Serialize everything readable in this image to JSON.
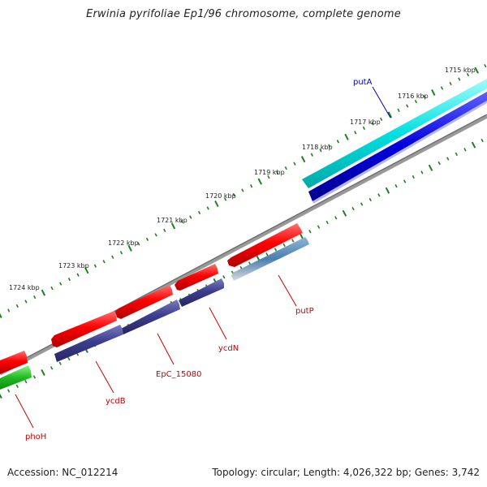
{
  "title": "Erwinia pyrifoliae Ep1/96 chromosome, complete genome",
  "footer": {
    "accession": "Accession: NC_012214",
    "summary": "Topology: circular; Length: 4,026,322 bp; Genes: 3,742"
  },
  "tick_labels": [
    "1715 kbp",
    "1716 kbp",
    "1717 kbp",
    "1718 kbp",
    "1719 kbp",
    "1720 kbp",
    "1721 kbp",
    "1722 kbp",
    "1723 kbp",
    "1724 kbp"
  ],
  "gene_labels": {
    "putA": "putA",
    "putP": "putP",
    "ycdN": "ycdN",
    "EpC_15080": "EpC_15080",
    "ycdB": "ycdB",
    "phoH": "phoH"
  },
  "colors": {
    "forward_gene": "#ff0000",
    "reverse_gene": "#3d3d8f",
    "putA_gene": "#00e5e5",
    "putA_second": "#0000dd",
    "putP_second": "#4a7fb0",
    "phoH_gene": "#22bb22",
    "backbone": "#808080",
    "tick": "#1f7f1f",
    "blue_label": "#0000cc",
    "red_label": "#cc0000"
  }
}
